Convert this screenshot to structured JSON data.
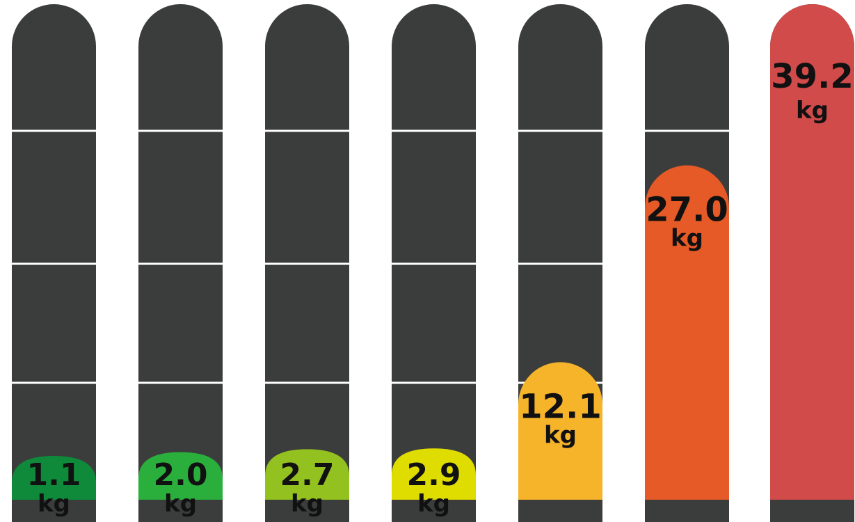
{
  "chart_data": {
    "type": "bar",
    "unit": "kg",
    "ylim": [
      0,
      39.2
    ],
    "values": [
      1.1,
      2.0,
      2.7,
      2.9,
      12.1,
      27.0,
      39.2
    ],
    "value_labels": [
      "1.1",
      "2.0",
      "2.7",
      "2.9",
      "12.1",
      "27.0",
      "39.2"
    ],
    "bar_colors": [
      "#0e8a3a",
      "#2aae3c",
      "#93c11f",
      "#dfdc00",
      "#f6b42b",
      "#e55a26",
      "#d14b4b"
    ],
    "track_color": "#3b3c3c",
    "grid": true
  }
}
